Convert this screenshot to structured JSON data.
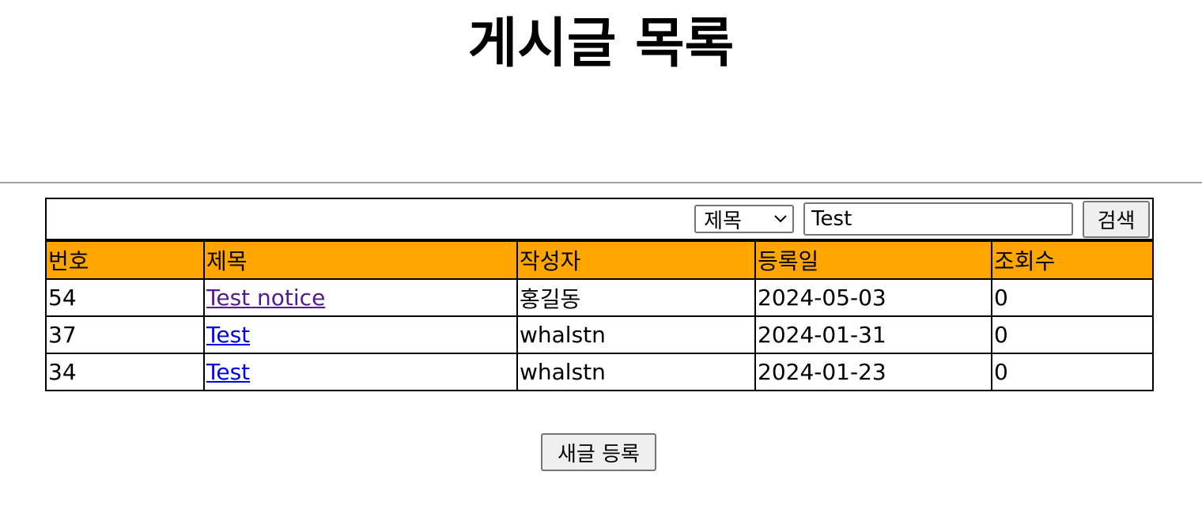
{
  "page": {
    "title": "게시글 목록"
  },
  "search": {
    "field_selected": "제목",
    "query_value": "Test",
    "button_label": "검색"
  },
  "table": {
    "headers": [
      "번호",
      "제목",
      "작성자",
      "등록일",
      "조회수"
    ],
    "rows": [
      {
        "no": "54",
        "title": "Test notice",
        "author": "홍길동",
        "date": "2024-05-03",
        "views": "0",
        "visited": true
      },
      {
        "no": "37",
        "title": "Test",
        "author": "whalstn",
        "date": "2024-01-31",
        "views": "0",
        "visited": false
      },
      {
        "no": "34",
        "title": "Test",
        "author": "whalstn",
        "date": "2024-01-23",
        "views": "0",
        "visited": false
      }
    ]
  },
  "actions": {
    "new_post_label": "새글 등록"
  },
  "colors": {
    "header_bg": "#ffa500",
    "link": "#0000ee",
    "link_visited": "#551a8b"
  }
}
